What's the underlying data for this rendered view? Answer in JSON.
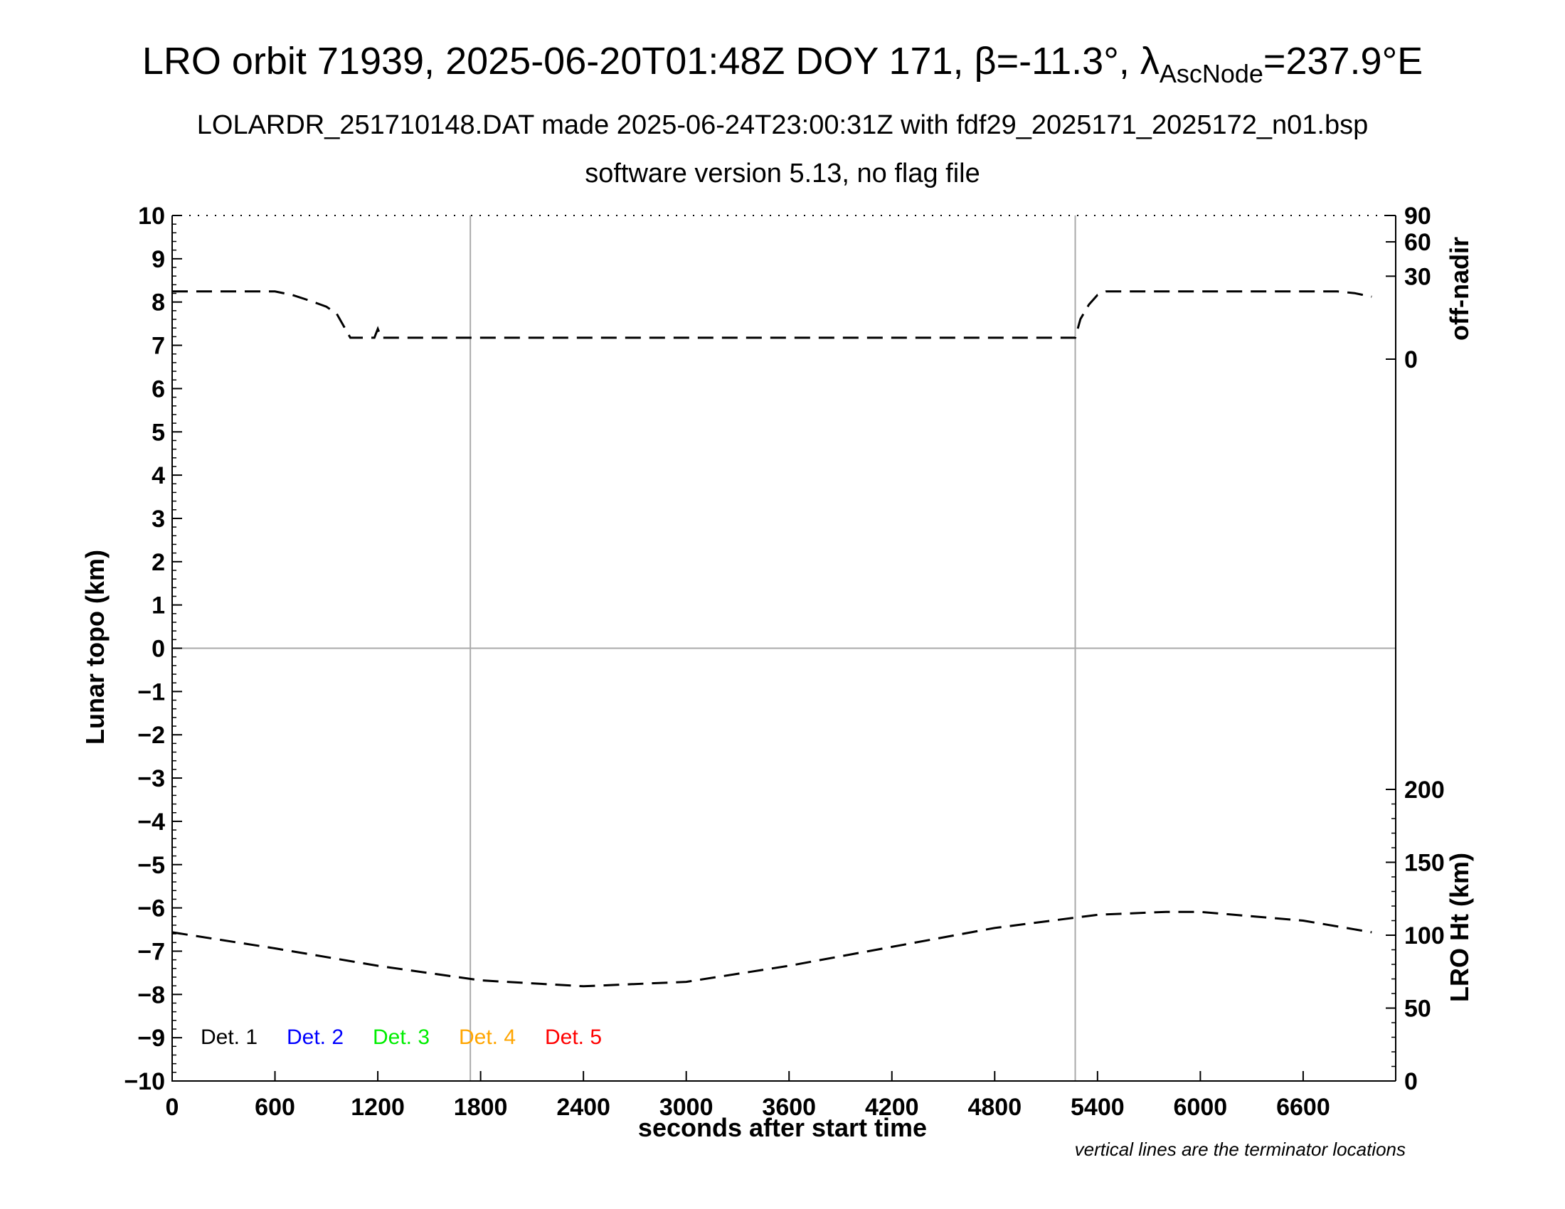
{
  "chart_data": {
    "type": "line",
    "title": {
      "prefix": "LRO orbit 71939, 2025-06-20T01:48Z DOY 171, ",
      "beta_symbol": "β",
      "beta_value": "=-11.3°, ",
      "lambda_symbol": "λ",
      "lambda_subscript": "AscNode",
      "lambda_value": "=237.9°E"
    },
    "subtitle_1": "LOLARDR_251710148.DAT made 2025-06-24T23:00:31Z with fdf29_2025171_2025172_n01.bsp",
    "subtitle_2": "software version 5.13, no flag file",
    "xlabel": "seconds after start time",
    "ylabel_left": "Lunar topo (km)",
    "ylabel_right_top": "off-nadir",
    "ylabel_right_bottom": "LRO Ht (km)",
    "note": "vertical lines are the terminator locations",
    "xlim": [
      0,
      7140
    ],
    "ylim_left": [
      -10,
      10
    ],
    "x_ticks": [
      0,
      600,
      1200,
      1800,
      2400,
      3000,
      3600,
      4200,
      4800,
      5400,
      6000,
      6600
    ],
    "y_ticks_left": [
      10,
      9,
      8,
      7,
      6,
      5,
      4,
      3,
      2,
      1,
      0,
      -1,
      -2,
      -3,
      -4,
      -5,
      -6,
      -7,
      -8,
      -9,
      -10
    ],
    "right_top_ticks": [
      {
        "label": "90",
        "value": 90
      },
      {
        "label": "60",
        "value": 60
      },
      {
        "label": "30",
        "value": 30
      },
      {
        "label": "0",
        "value": 0
      }
    ],
    "right_bottom_ticks": [
      {
        "label": "200",
        "value": 200
      },
      {
        "label": "150",
        "value": 150
      },
      {
        "label": "100",
        "value": 100
      },
      {
        "label": "50",
        "value": 50
      },
      {
        "label": "0",
        "value": 0
      }
    ],
    "terminators": [
      1740,
      5270
    ],
    "legend": [
      {
        "label": "Det. 1",
        "color": "#000000"
      },
      {
        "label": "Det. 2",
        "color": "#0000ff"
      },
      {
        "label": "Det. 3",
        "color": "#00ee00"
      },
      {
        "label": "Det. 4",
        "color": "#ffa500"
      },
      {
        "label": "Det. 5",
        "color": "#ff0000"
      }
    ],
    "series": [
      {
        "axis": "off-nadir",
        "style": "dashed",
        "x": [
          0,
          600,
          700,
          800,
          900,
          960,
          1040,
          1080,
          1180,
          1200,
          1220,
          1500,
          2000,
          3000,
          4000,
          5000,
          5270,
          5300,
          5350,
          5400,
          5450,
          5500,
          6000,
          6500,
          6800,
          6900,
          7000
        ],
        "y": [
          20,
          20,
          18,
          15,
          12,
          9,
          2,
          2,
          2,
          4,
          2,
          2,
          2,
          2,
          2,
          2,
          2,
          7,
          13,
          18,
          20,
          20,
          20,
          20,
          20,
          19,
          17
        ]
      },
      {
        "axis": "LRO Ht (km)",
        "style": "dashed",
        "x": [
          0,
          600,
          1200,
          1800,
          2400,
          3000,
          3600,
          4200,
          4800,
          5400,
          5800,
          6000,
          6600,
          7000
        ],
        "y": [
          102,
          91,
          79,
          69,
          65,
          68,
          79,
          92,
          105,
          114,
          116,
          116,
          110,
          102
        ]
      }
    ]
  }
}
